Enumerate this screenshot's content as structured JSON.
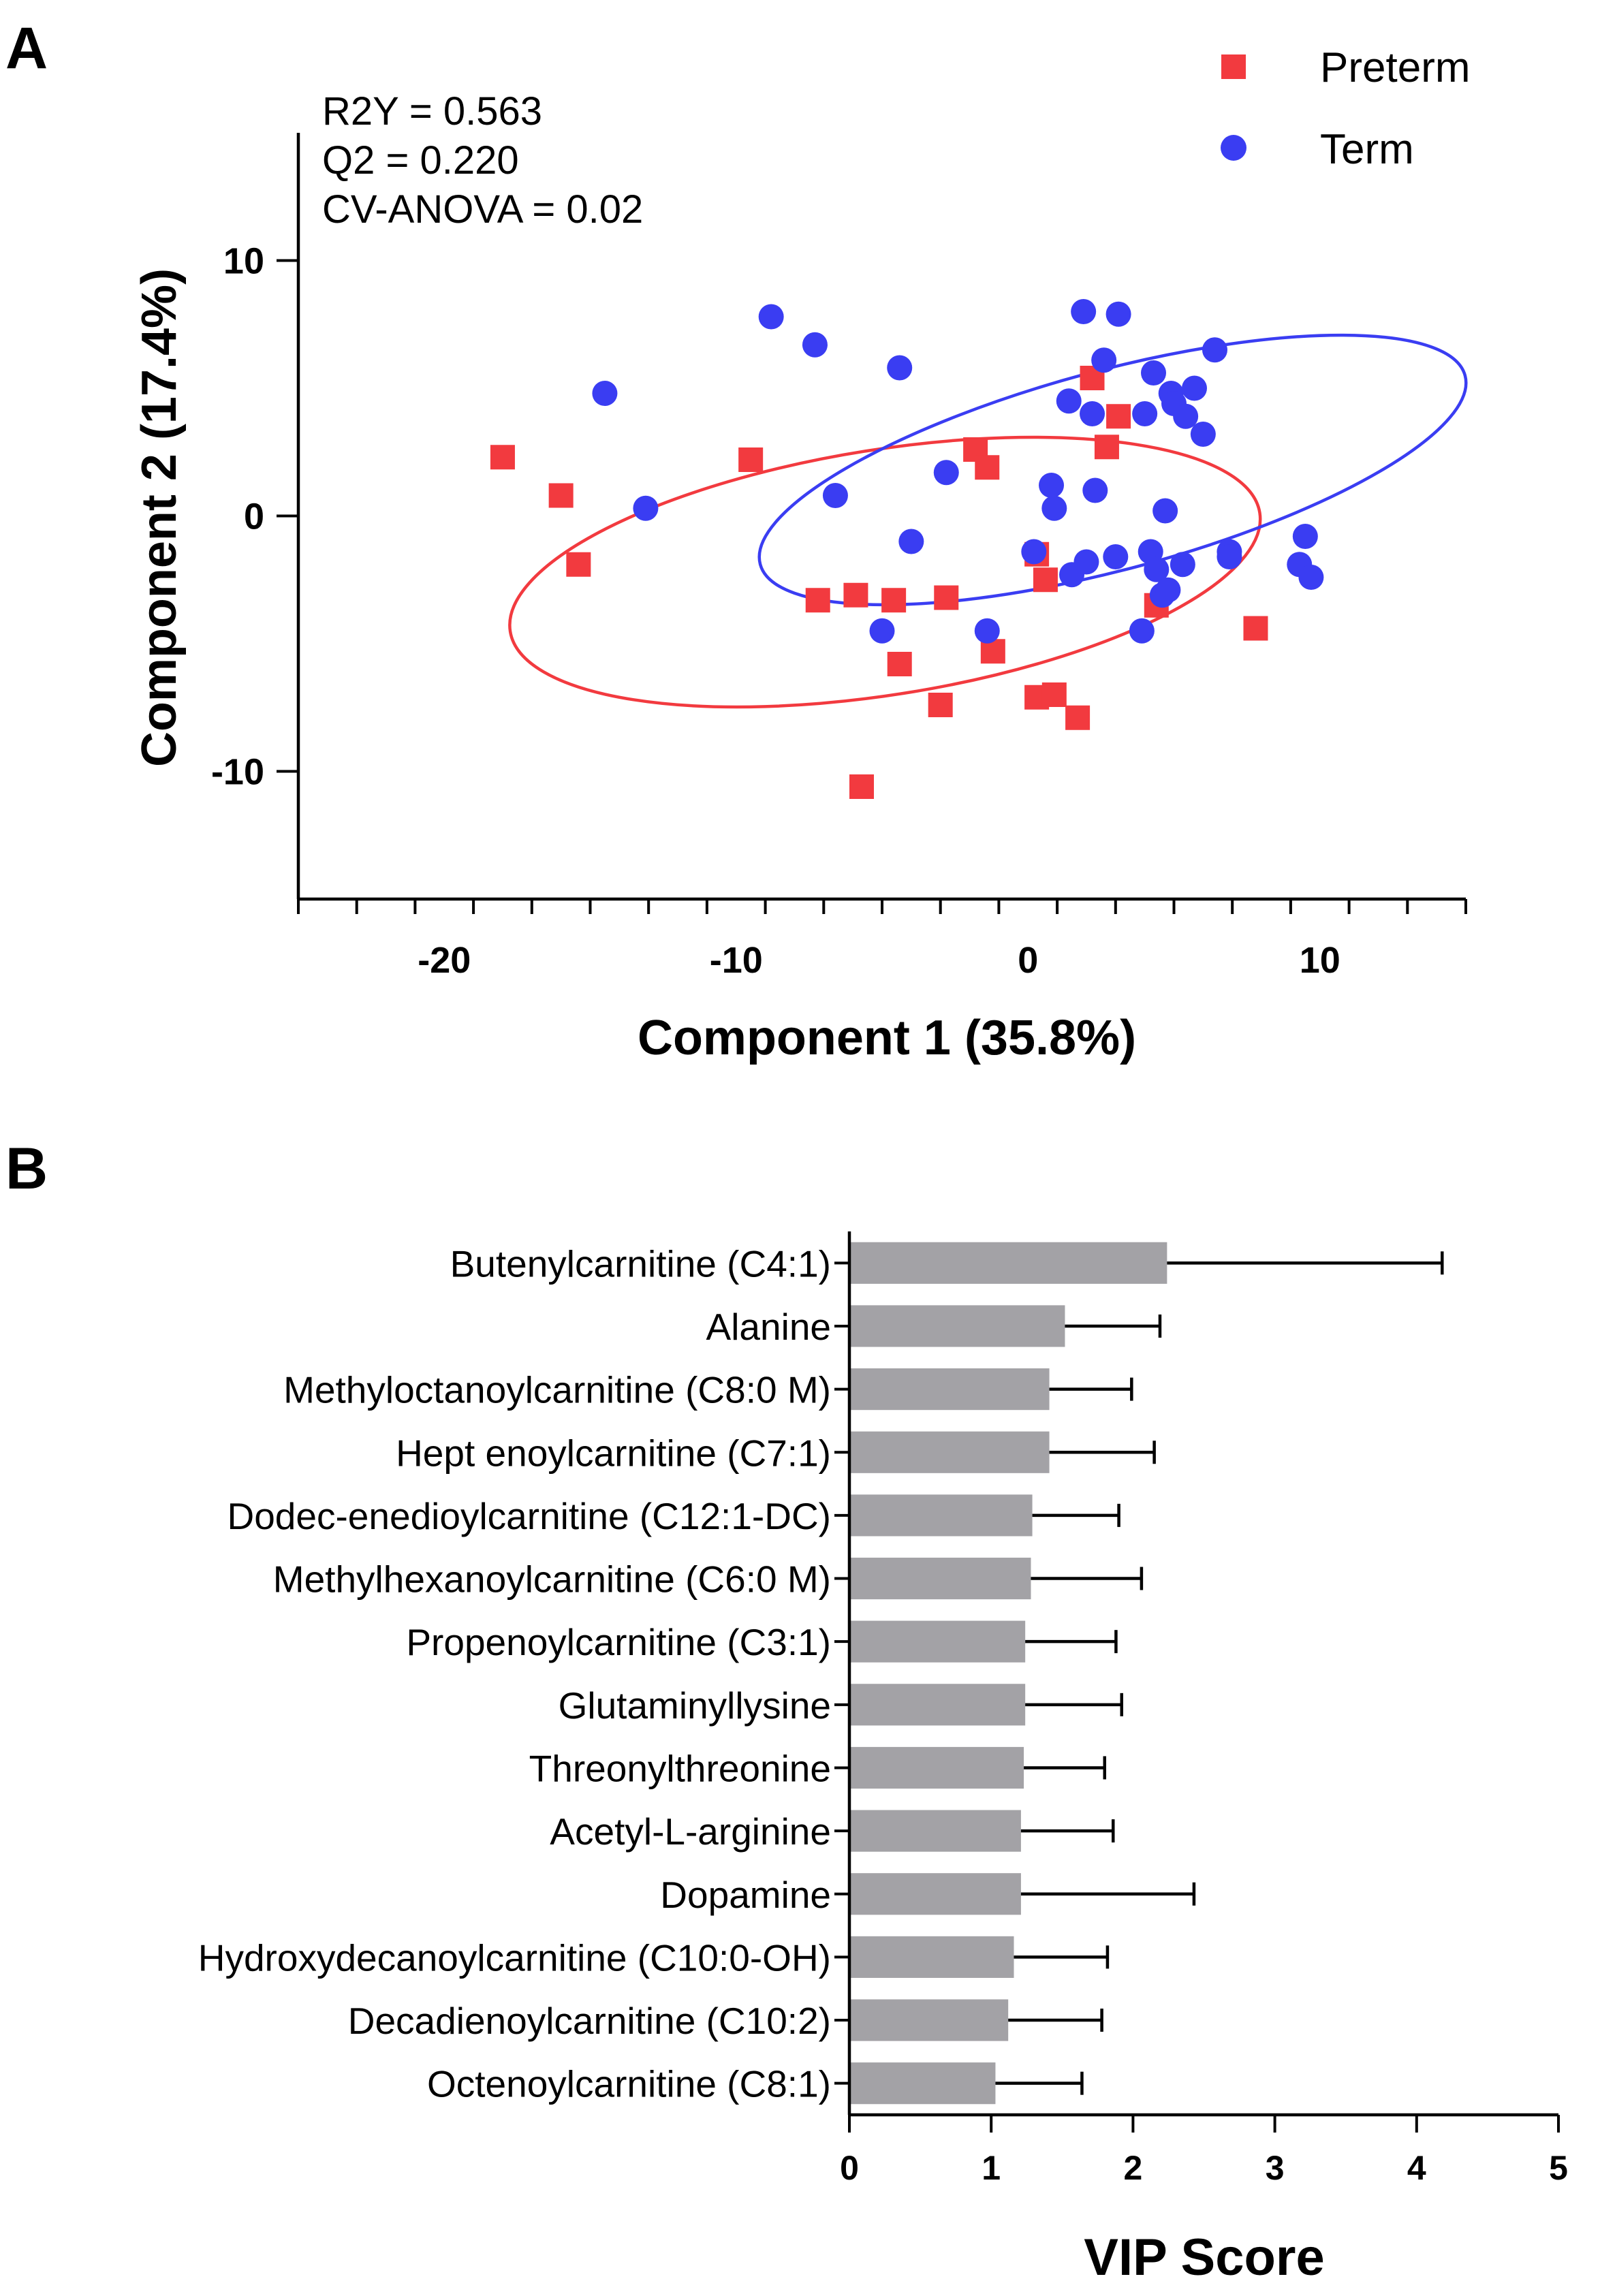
{
  "colors": {
    "preterm": "#f23a3f",
    "term": "#3a3df2",
    "bar": "#a3a2a6",
    "axis": "#000000"
  },
  "chart_data": [
    {
      "panel_label": "A",
      "type": "scatter",
      "xlabel": "Component 1 (35.8%)",
      "ylabel": "Component 2 (17.4%)",
      "xlim": [
        -25,
        15
      ],
      "ylim": [
        -15,
        15
      ],
      "xticks": [
        -20,
        -10,
        0,
        10
      ],
      "yticks": [
        -10,
        0,
        10
      ],
      "legend_position": "top-right",
      "grid": false,
      "annotations": [
        "R2Y = 0.563",
        "Q2 = 0.220",
        "CV-ANOVA = 0.02"
      ],
      "ellipses": [
        {
          "series": "Preterm",
          "cx": -4.9,
          "cy": -2.2,
          "rx": 26.0,
          "ry": 9.6,
          "angle_deg": -9
        },
        {
          "series": "Term",
          "cx": 2.9,
          "cy": 1.8,
          "rx": 25.0,
          "ry": 7.8,
          "angle_deg": -15
        }
      ],
      "series": [
        {
          "name": "Preterm",
          "marker": "square",
          "x": [
            -18.0,
            -16.0,
            -15.4,
            -9.5,
            -7.2,
            -5.9,
            -4.6,
            -4.4,
            -2.8,
            -3.0,
            -1.8,
            -1.4,
            -1.2,
            0.3,
            0.3,
            0.6,
            0.9,
            1.7,
            2.2,
            2.7,
            3.1,
            4.4,
            7.8,
            -5.7
          ],
          "y": [
            2.3,
            0.8,
            -1.9,
            2.2,
            -3.3,
            -3.1,
            -3.3,
            -5.8,
            -3.2,
            -7.4,
            2.6,
            1.9,
            -5.3,
            -1.5,
            -7.1,
            -2.5,
            -7.0,
            -7.9,
            5.4,
            2.7,
            3.9,
            -3.5,
            -4.4,
            -10.6
          ]
        },
        {
          "name": "Term",
          "marker": "circle",
          "x": [
            -14.5,
            -13.1,
            -8.8,
            -7.3,
            -6.6,
            -4.4,
            -5.0,
            -4.0,
            -2.8,
            -1.4,
            0.2,
            0.8,
            0.9,
            1.4,
            1.5,
            2.0,
            1.9,
            2.2,
            2.3,
            2.6,
            3.0,
            3.1,
            3.9,
            4.0,
            4.2,
            4.3,
            4.4,
            4.6,
            4.7,
            4.8,
            4.9,
            5.0,
            5.3,
            5.4,
            5.7,
            6.0,
            6.4,
            6.9,
            6.9,
            9.3,
            9.5,
            9.7
          ],
          "y": [
            4.8,
            0.3,
            7.8,
            6.7,
            0.8,
            5.8,
            -4.5,
            -1.0,
            1.7,
            -4.5,
            -1.4,
            1.2,
            0.3,
            4.5,
            -2.3,
            -1.8,
            8.0,
            4.0,
            1.0,
            6.1,
            -1.6,
            7.9,
            -4.5,
            4.0,
            -1.4,
            5.6,
            -2.1,
            -3.1,
            0.2,
            -2.9,
            4.8,
            4.4,
            -1.9,
            3.9,
            5.0,
            3.2,
            6.5,
            -1.4,
            -1.6,
            -1.9,
            -0.8,
            -2.4
          ]
        }
      ]
    },
    {
      "panel_label": "B",
      "type": "bar",
      "orientation": "horizontal",
      "xlabel": "VIP Score",
      "xlim": [
        0,
        5
      ],
      "xticks": [
        0,
        1,
        2,
        3,
        4,
        5
      ],
      "grid": false,
      "categories": [
        "Butenylcarnitine (C4:1)",
        "Alanine",
        "Methyloctanoylcarnitine (C8:0 M)",
        "Hept enoylcarnitine (C7:1)",
        "Dodec-enedioylcarnitine (C12:1-DC)",
        "Methylhexanoylcarnitine (C6:0 M)",
        "Propenoylcarnitine (C3:1)",
        "Glutaminyllysine",
        "Threonylthreonine",
        "Acetyl-L-arginine",
        "Dopamine",
        "Hydroxydecanoylcarnitine (C10:0-OH)",
        "Decadienoylcarnitine (C10:2)",
        "Octenoylcarnitine (C8:1)"
      ],
      "values": [
        2.24,
        1.52,
        1.41,
        1.41,
        1.29,
        1.28,
        1.24,
        1.24,
        1.23,
        1.21,
        1.21,
        1.16,
        1.12,
        1.03
      ],
      "error_upper": [
        1.94,
        0.67,
        0.58,
        0.74,
        0.61,
        0.78,
        0.64,
        0.68,
        0.57,
        0.65,
        1.22,
        0.66,
        0.66,
        0.61
      ]
    }
  ]
}
